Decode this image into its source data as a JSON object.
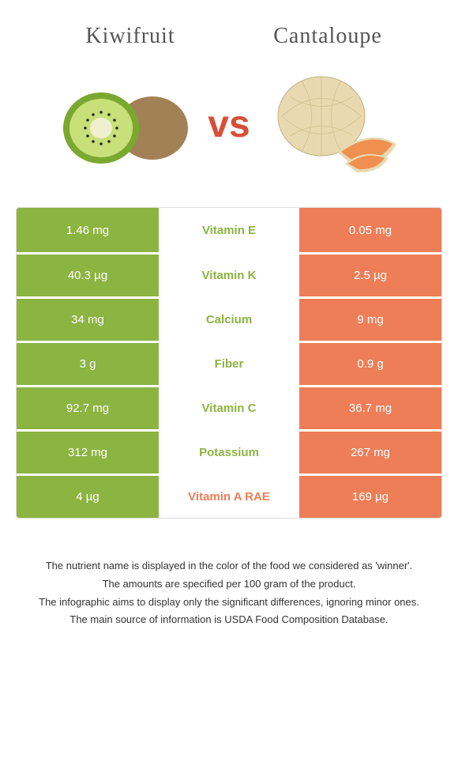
{
  "header": {
    "left_title": "Kiwifruit",
    "right_title": "Cantaloupe",
    "vs_label": "vs"
  },
  "colors": {
    "left": "#8bb441",
    "right": "#ed7e58",
    "vs": "#d84f38",
    "background": "#ffffff"
  },
  "nutrients": [
    {
      "name": "Vitamin E",
      "left": "1.46 mg",
      "right": "0.05 mg",
      "winner": "left"
    },
    {
      "name": "Vitamin K",
      "left": "40.3 µg",
      "right": "2.5 µg",
      "winner": "left"
    },
    {
      "name": "Calcium",
      "left": "34 mg",
      "right": "9 mg",
      "winner": "left"
    },
    {
      "name": "Fiber",
      "left": "3 g",
      "right": "0.9 g",
      "winner": "left"
    },
    {
      "name": "Vitamin C",
      "left": "92.7 mg",
      "right": "36.7 mg",
      "winner": "left"
    },
    {
      "name": "Potassium",
      "left": "312 mg",
      "right": "267 mg",
      "winner": "left"
    },
    {
      "name": "Vitamin A RAE",
      "left": "4 µg",
      "right": "169 µg",
      "winner": "right"
    }
  ],
  "footer": {
    "line1": "The nutrient name is displayed in the color of the food we considered as 'winner'.",
    "line2": "The amounts are specified per 100 gram of the product.",
    "line3": "The infographic aims to display only the significant differences, ignoring minor ones.",
    "line4": "The main source of information is USDA Food Composition Database."
  }
}
